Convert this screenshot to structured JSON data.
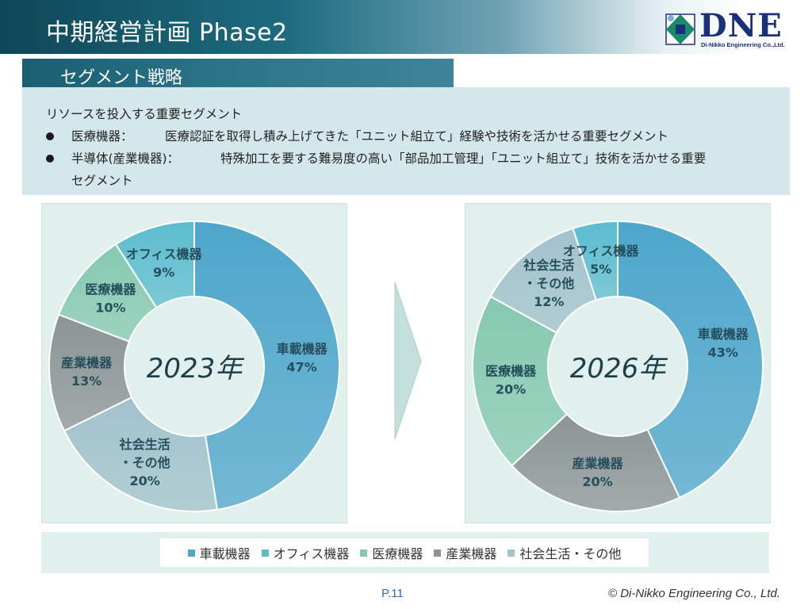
{
  "header": {
    "title": "中期経営計画 Phase2"
  },
  "logo": {
    "text": "DNE",
    "subtitle": "Di-Nikko Engineering Co.,Ltd."
  },
  "section": {
    "title": "セグメント戦略"
  },
  "summary": {
    "heading": "リソースを投入する重要セグメント",
    "bullets": [
      {
        "label": "医療機器：",
        "text": "医療認証を取得し積み上げてきた「ユニット組立て」経験や技術を活かせる重要セグメント"
      },
      {
        "label": "半導体(産業機器)：",
        "text": "特殊加工を要する難易度の高い「部品加工管理」「ユニット組立て」技術を活かせる重要",
        "text_cont": "セグメント"
      }
    ]
  },
  "colors": {
    "車載機器": "#4ea6cc",
    "オフィス機器": "#5bbccf",
    "医療機器": "#86c9b0",
    "産業機器": "#8c9496",
    "社会生活・その他": "#a2c2cc",
    "label": "#264f5c",
    "center": "#1e3f49"
  },
  "chart_data": [
    {
      "type": "pie",
      "center_label": "2023年",
      "slices": [
        {
          "name": "車載機器",
          "value": 47,
          "label_lines": [
            "車載機器",
            "47%"
          ]
        },
        {
          "name": "社会生活・その他",
          "value": 20,
          "label_lines": [
            "社会生活",
            "・その他",
            "20%"
          ]
        },
        {
          "name": "産業機器",
          "value": 13,
          "label_lines": [
            "産業機器",
            "13%"
          ]
        },
        {
          "name": "医療機器",
          "value": 10,
          "label_lines": [
            "医療機器",
            "10%"
          ]
        },
        {
          "name": "オフィス機器",
          "value": 9,
          "label_lines": [
            "オフィス機器",
            "9%"
          ]
        }
      ]
    },
    {
      "type": "pie",
      "center_label": "2026年",
      "slices": [
        {
          "name": "車載機器",
          "value": 43,
          "label_lines": [
            "車載機器",
            "43%"
          ]
        },
        {
          "name": "産業機器",
          "value": 20,
          "label_lines": [
            "産業機器",
            "20%"
          ]
        },
        {
          "name": "医療機器",
          "value": 20,
          "label_lines": [
            "医療機器",
            "20%"
          ]
        },
        {
          "name": "社会生活・その他",
          "value": 12,
          "label_lines": [
            "社会生活",
            "・その他",
            "12%"
          ]
        },
        {
          "name": "オフィス機器",
          "value": 5,
          "label_lines": [
            "オフィス機器",
            "5%"
          ]
        }
      ]
    }
  ],
  "legend": {
    "items": [
      "車載機器",
      "オフィス機器",
      "医療機器",
      "産業機器",
      "社会生活・その他"
    ]
  },
  "footer": {
    "page": "P.11",
    "copyright": "© Di-Nikko Engineering Co., Ltd."
  }
}
